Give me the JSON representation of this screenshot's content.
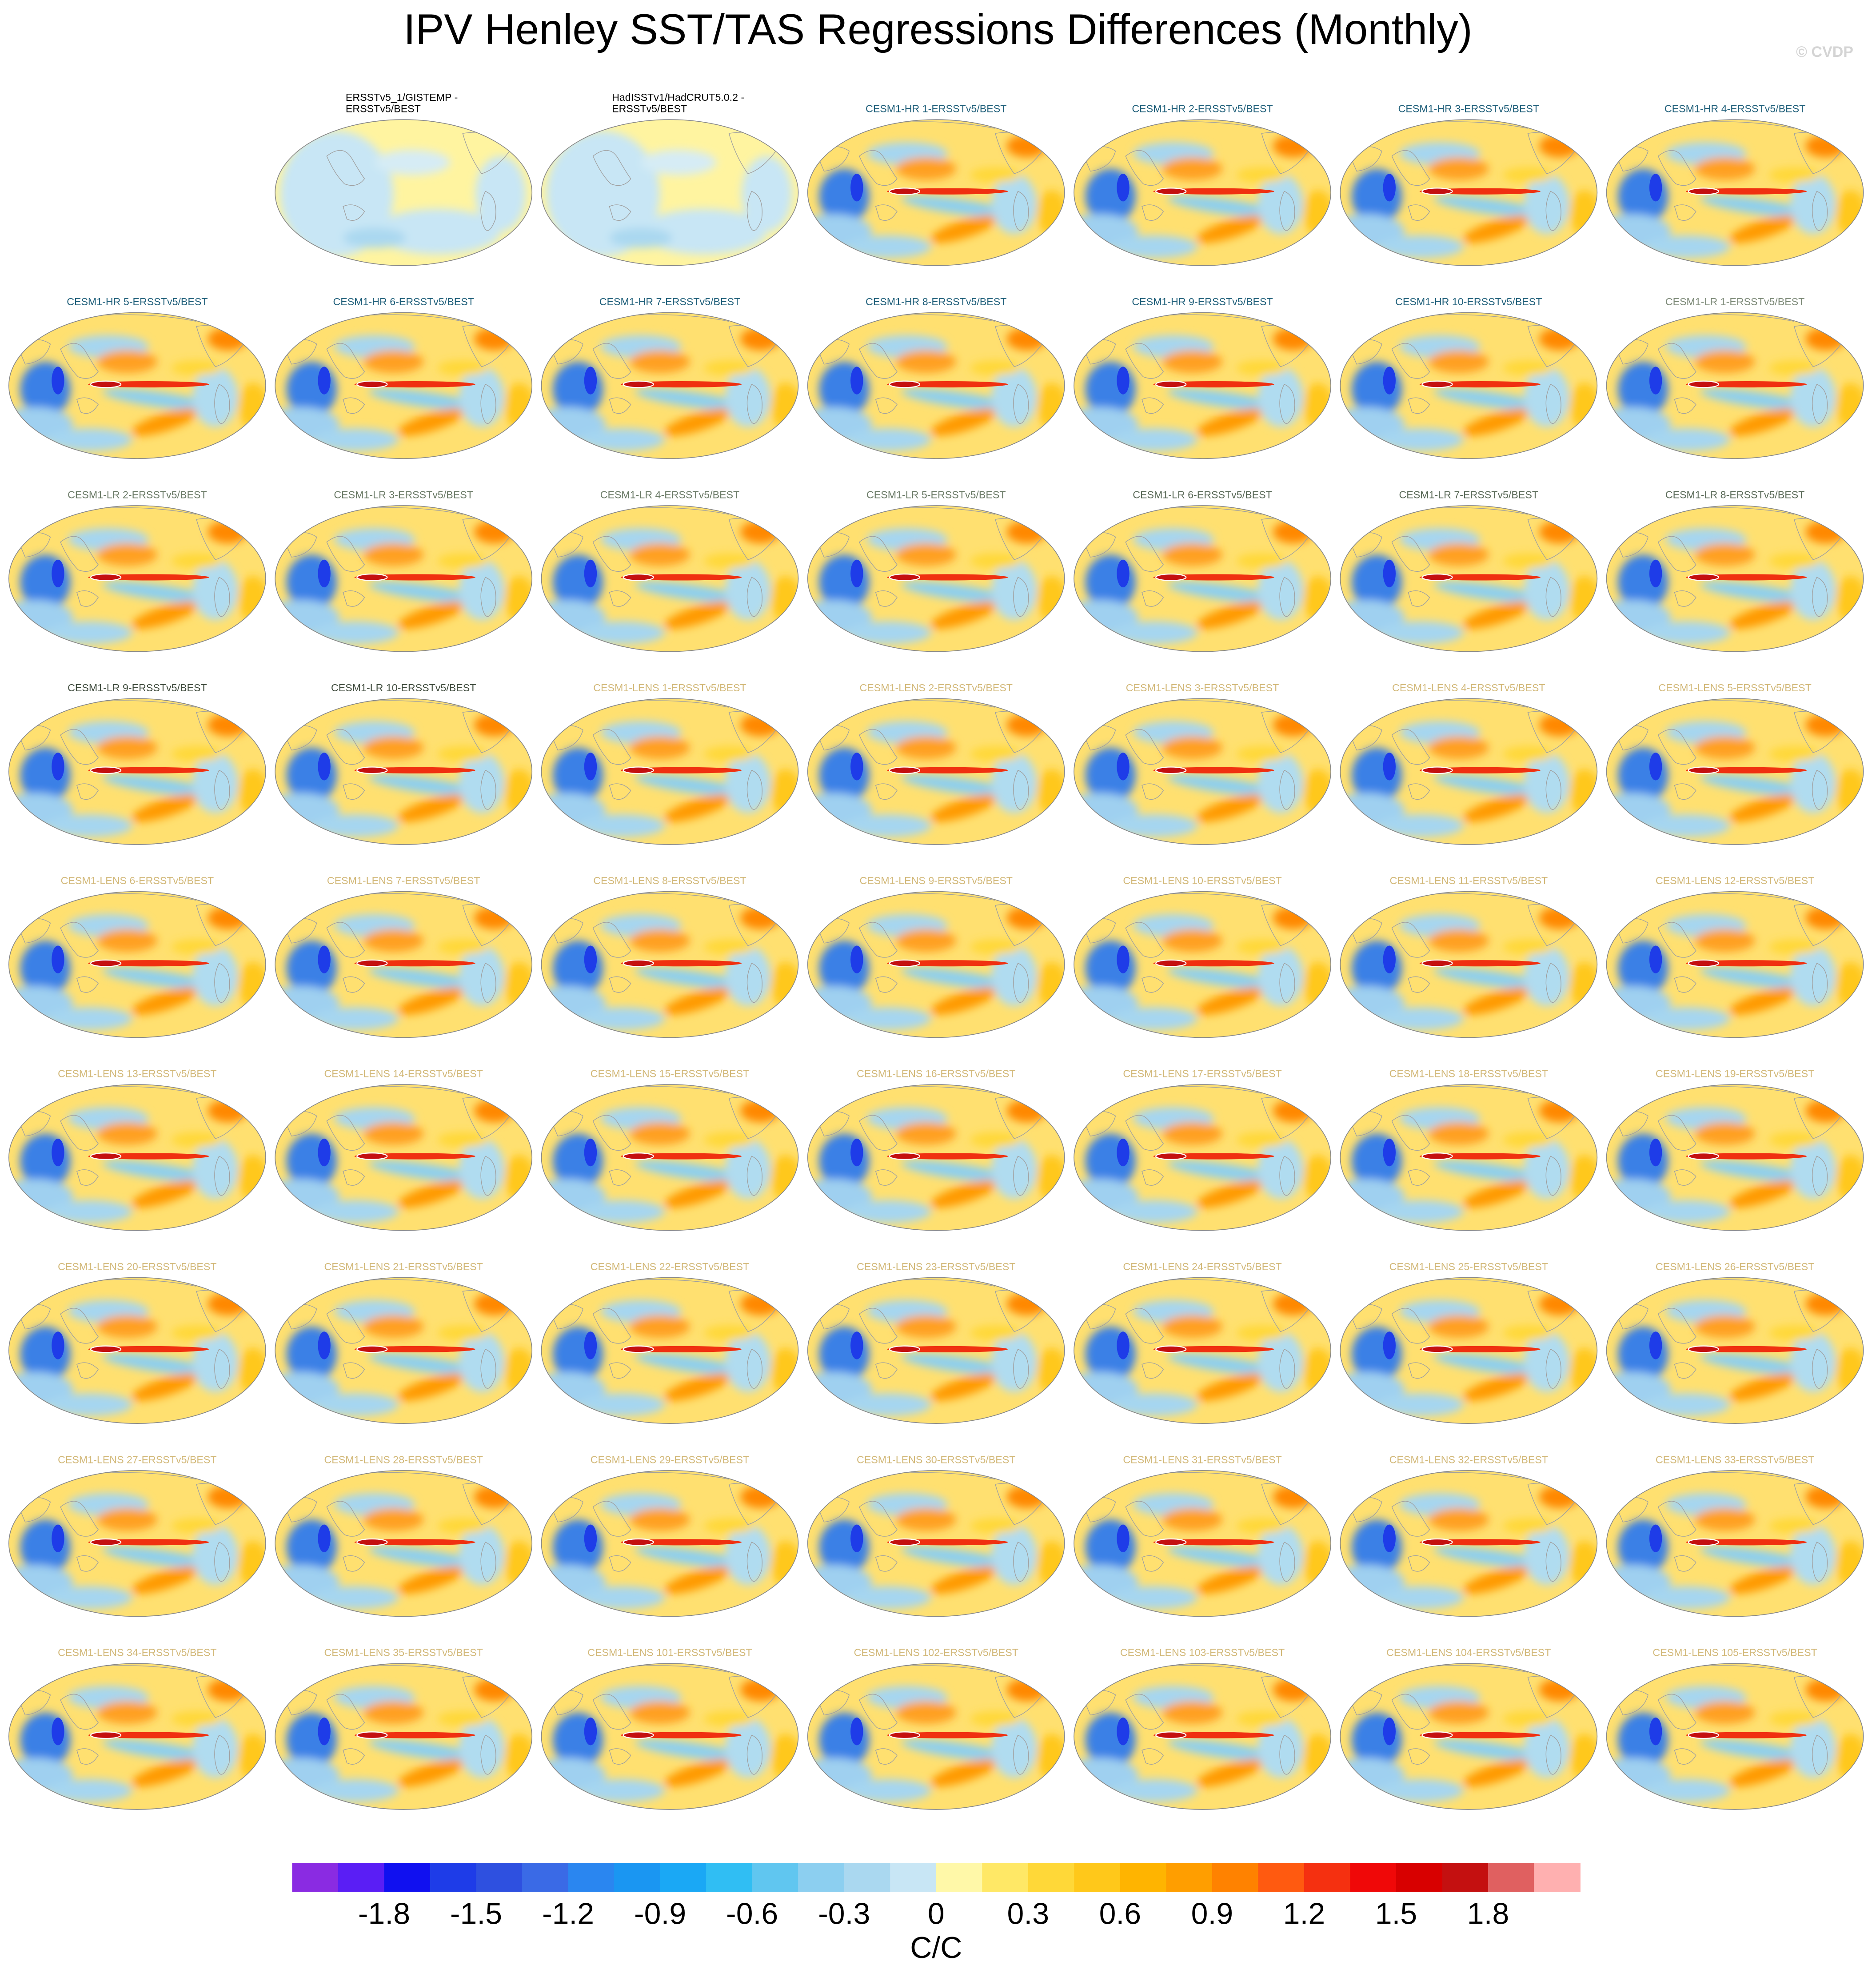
{
  "chart_data": {
    "type": "map-panels",
    "title": "IPV Henley SST/TAS Regressions Differences (Monthly)",
    "watermark": "© CVDP",
    "panels": [
      {
        "lines": [
          "ERSSTv5_1/GISTEMP -",
          "ERSSTv5/BEST"
        ],
        "color": "#000000"
      },
      {
        "lines": [
          "HadISSTv1/HadCRUT5.0.2 -",
          "ERSSTv5/BEST"
        ],
        "color": "#000000"
      },
      {
        "lines": [
          "CESM1-HR 1-ERSSTv5/BEST"
        ],
        "color": "#1f5f7a"
      },
      {
        "lines": [
          "CESM1-HR 2-ERSSTv5/BEST"
        ],
        "color": "#1f5f7a"
      },
      {
        "lines": [
          "CESM1-HR 3-ERSSTv5/BEST"
        ],
        "color": "#1f5f7a"
      },
      {
        "lines": [
          "CESM1-HR 4-ERSSTv5/BEST"
        ],
        "color": "#1f5f7a"
      },
      {
        "lines": [
          "CESM1-HR 5-ERSSTv5/BEST"
        ],
        "color": "#1f5f7a"
      },
      {
        "lines": [
          "CESM1-HR 6-ERSSTv5/BEST"
        ],
        "color": "#1f5f7a"
      },
      {
        "lines": [
          "CESM1-HR 7-ERSSTv5/BEST"
        ],
        "color": "#1f5f7a"
      },
      {
        "lines": [
          "CESM1-HR 8-ERSSTv5/BEST"
        ],
        "color": "#1f5f7a"
      },
      {
        "lines": [
          "CESM1-HR 9-ERSSTv5/BEST"
        ],
        "color": "#1f5f7a"
      },
      {
        "lines": [
          "CESM1-HR 10-ERSSTv5/BEST"
        ],
        "color": "#1f5f7a"
      },
      {
        "lines": [
          "CESM1-LR 1-ERSSTv5/BEST"
        ],
        "color": "#7d8a78"
      },
      {
        "lines": [
          "CESM1-LR 2-ERSSTv5/BEST"
        ],
        "color": "#6a7a66"
      },
      {
        "lines": [
          "CESM1-LR 3-ERSSTv5/BEST"
        ],
        "color": "#6a7a66"
      },
      {
        "lines": [
          "CESM1-LR 4-ERSSTv5/BEST"
        ],
        "color": "#6a7a66"
      },
      {
        "lines": [
          "CESM1-LR 5-ERSSTv5/BEST"
        ],
        "color": "#6a7a66"
      },
      {
        "lines": [
          "CESM1-LR 6-ERSSTv5/BEST"
        ],
        "color": "#5a6a58"
      },
      {
        "lines": [
          "CESM1-LR 7-ERSSTv5/BEST"
        ],
        "color": "#5a6a58"
      },
      {
        "lines": [
          "CESM1-LR 8-ERSSTv5/BEST"
        ],
        "color": "#5a6a58"
      },
      {
        "lines": [
          "CESM1-LR 9-ERSSTv5/BEST"
        ],
        "color": "#3e4a3c"
      },
      {
        "lines": [
          "CESM1-LR 10-ERSSTv5/BEST"
        ],
        "color": "#3e4a3c"
      },
      {
        "lines": [
          "CESM1-LENS 1-ERSSTv5/BEST"
        ],
        "color": "#d2b878"
      },
      {
        "lines": [
          "CESM1-LENS 2-ERSSTv5/BEST"
        ],
        "color": "#d2b878"
      },
      {
        "lines": [
          "CESM1-LENS 3-ERSSTv5/BEST"
        ],
        "color": "#d2b878"
      },
      {
        "lines": [
          "CESM1-LENS 4-ERSSTv5/BEST"
        ],
        "color": "#d2b878"
      },
      {
        "lines": [
          "CESM1-LENS 5-ERSSTv5/BEST"
        ],
        "color": "#d2b878"
      },
      {
        "lines": [
          "CESM1-LENS 6-ERSSTv5/BEST"
        ],
        "color": "#d2b878"
      },
      {
        "lines": [
          "CESM1-LENS 7-ERSSTv5/BEST"
        ],
        "color": "#d2b878"
      },
      {
        "lines": [
          "CESM1-LENS 8-ERSSTv5/BEST"
        ],
        "color": "#d2b878"
      },
      {
        "lines": [
          "CESM1-LENS 9-ERSSTv5/BEST"
        ],
        "color": "#d2b878"
      },
      {
        "lines": [
          "CESM1-LENS 10-ERSSTv5/BEST"
        ],
        "color": "#d2b878"
      },
      {
        "lines": [
          "CESM1-LENS 11-ERSSTv5/BEST"
        ],
        "color": "#d2b878"
      },
      {
        "lines": [
          "CESM1-LENS 12-ERSSTv5/BEST"
        ],
        "color": "#d2b878"
      },
      {
        "lines": [
          "CESM1-LENS 13-ERSSTv5/BEST"
        ],
        "color": "#d2b878"
      },
      {
        "lines": [
          "CESM1-LENS 14-ERSSTv5/BEST"
        ],
        "color": "#d2b878"
      },
      {
        "lines": [
          "CESM1-LENS 15-ERSSTv5/BEST"
        ],
        "color": "#d2b878"
      },
      {
        "lines": [
          "CESM1-LENS 16-ERSSTv5/BEST"
        ],
        "color": "#d2b878"
      },
      {
        "lines": [
          "CESM1-LENS 17-ERSSTv5/BEST"
        ],
        "color": "#d2b878"
      },
      {
        "lines": [
          "CESM1-LENS 18-ERSSTv5/BEST"
        ],
        "color": "#d2b878"
      },
      {
        "lines": [
          "CESM1-LENS 19-ERSSTv5/BEST"
        ],
        "color": "#d2b878"
      },
      {
        "lines": [
          "CESM1-LENS 20-ERSSTv5/BEST"
        ],
        "color": "#d2b878"
      },
      {
        "lines": [
          "CESM1-LENS 21-ERSSTv5/BEST"
        ],
        "color": "#d2b878"
      },
      {
        "lines": [
          "CESM1-LENS 22-ERSSTv5/BEST"
        ],
        "color": "#d2b878"
      },
      {
        "lines": [
          "CESM1-LENS 23-ERSSTv5/BEST"
        ],
        "color": "#d2b878"
      },
      {
        "lines": [
          "CESM1-LENS 24-ERSSTv5/BEST"
        ],
        "color": "#d2b878"
      },
      {
        "lines": [
          "CESM1-LENS 25-ERSSTv5/BEST"
        ],
        "color": "#d2b878"
      },
      {
        "lines": [
          "CESM1-LENS 26-ERSSTv5/BEST"
        ],
        "color": "#d2b878"
      },
      {
        "lines": [
          "CESM1-LENS 27-ERSSTv5/BEST"
        ],
        "color": "#d2b878"
      },
      {
        "lines": [
          "CESM1-LENS 28-ERSSTv5/BEST"
        ],
        "color": "#d2b878"
      },
      {
        "lines": [
          "CESM1-LENS 29-ERSSTv5/BEST"
        ],
        "color": "#d2b878"
      },
      {
        "lines": [
          "CESM1-LENS 30-ERSSTv5/BEST"
        ],
        "color": "#d2b878"
      },
      {
        "lines": [
          "CESM1-LENS 31-ERSSTv5/BEST"
        ],
        "color": "#d2b878"
      },
      {
        "lines": [
          "CESM1-LENS 32-ERSSTv5/BEST"
        ],
        "color": "#d2b878"
      },
      {
        "lines": [
          "CESM1-LENS 33-ERSSTv5/BEST"
        ],
        "color": "#d2b878"
      },
      {
        "lines": [
          "CESM1-LENS 34-ERSSTv5/BEST"
        ],
        "color": "#d2b878"
      },
      {
        "lines": [
          "CESM1-LENS 35-ERSSTv5/BEST"
        ],
        "color": "#d2b878"
      },
      {
        "lines": [
          "CESM1-LENS 101-ERSSTv5/BEST"
        ],
        "color": "#d2b878"
      },
      {
        "lines": [
          "CESM1-LENS 102-ERSSTv5/BEST"
        ],
        "color": "#d2b878"
      },
      {
        "lines": [
          "CESM1-LENS 103-ERSSTv5/BEST"
        ],
        "color": "#d2b878"
      },
      {
        "lines": [
          "CESM1-LENS 104-ERSSTv5/BEST"
        ],
        "color": "#d2b878"
      },
      {
        "lines": [
          "CESM1-LENS 105-ERSSTv5/BEST"
        ],
        "color": "#d2b878"
      }
    ],
    "colorbar": {
      "label": "C/C",
      "clim": [
        -2.1,
        2.1
      ],
      "ticks": [
        -1.8,
        -1.5,
        -1.2,
        -0.9,
        -0.6,
        -0.3,
        0,
        0.3,
        0.6,
        0.9,
        1.2,
        1.5,
        1.8
      ],
      "colors": [
        "#8a2be2",
        "#5a1ef5",
        "#1010f0",
        "#1e3ce8",
        "#2e50e0",
        "#3a6ae6",
        "#2a86f0",
        "#1a96f2",
        "#1aa8f5",
        "#30bef3",
        "#60c6f0",
        "#8ccff0",
        "#aad8f0",
        "#c8e6f5",
        "#fff8a8",
        "#ffe866",
        "#ffd838",
        "#ffc81a",
        "#ffb400",
        "#ff9e00",
        "#ff8200",
        "#ff5a10",
        "#f53010",
        "#f00808",
        "#d80000",
        "#c41010",
        "#e06060",
        "#ffb0b0"
      ]
    }
  }
}
